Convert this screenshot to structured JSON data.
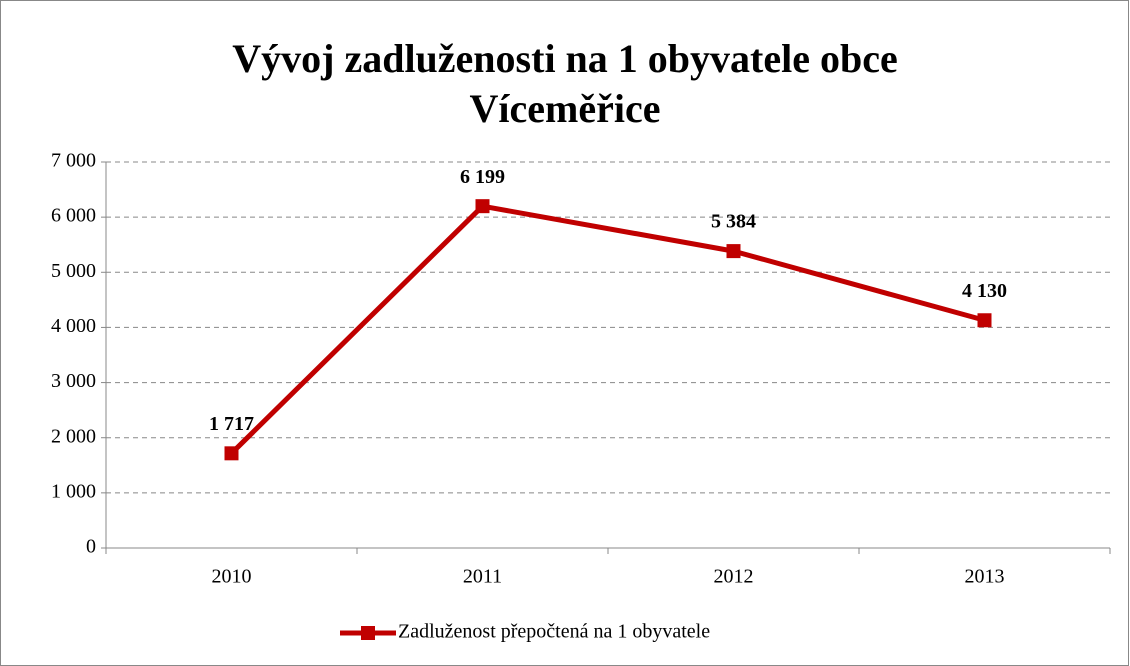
{
  "chart_data": {
    "type": "line",
    "title": "Vývoj zadluženosti na 1 obyvatele obce Víceměřice",
    "categories": [
      "2010",
      "2011",
      "2012",
      "2013"
    ],
    "series": [
      {
        "name": "Zadluženost přepočtená na 1 obyvatele",
        "color": "#c00000",
        "values": [
          1717,
          6199,
          5384,
          4130
        ],
        "value_labels": [
          "1 717",
          "6 199",
          "5 384",
          "4 130"
        ]
      }
    ],
    "ylim": [
      0,
      7000
    ],
    "yticks": [
      0,
      {
        "value": 1000,
        "label": "1 000"
      },
      {
        "value": 2000,
        "label": "2 000"
      },
      {
        "value": 3000,
        "label": "3 000"
      },
      {
        "value": 4000,
        "label": "4 000"
      },
      {
        "value": 5000,
        "label": "5 000"
      },
      {
        "value": 6000,
        "label": "6 000"
      },
      {
        "value": 7000,
        "label": "7 000"
      }
    ],
    "grid": true,
    "legend": "bottom"
  }
}
